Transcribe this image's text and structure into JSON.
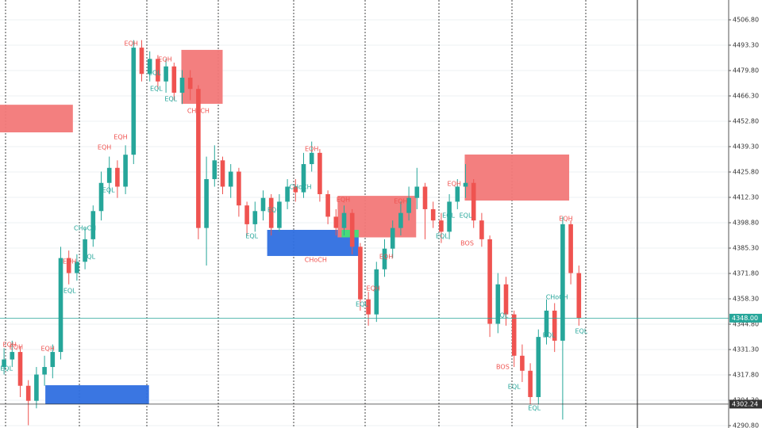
{
  "chart_data": {
    "type": "candlestick",
    "xlim": [
      0,
      90
    ],
    "ylim": [
      4289.53,
      4517.35
    ],
    "yticks": [
      {
        "value": 4506.8,
        "label": "4506.80"
      },
      {
        "value": 4493.3,
        "label": "4493.30"
      },
      {
        "value": 4479.8,
        "label": "4479.80"
      },
      {
        "value": 4466.3,
        "label": "4466.30"
      },
      {
        "value": 4452.8,
        "label": "4452.80"
      },
      {
        "value": 4439.3,
        "label": "4439.30"
      },
      {
        "value": 4425.8,
        "label": "4425.80"
      },
      {
        "value": 4412.3,
        "label": "4412.30"
      },
      {
        "value": 4398.8,
        "label": "4398.80"
      },
      {
        "value": 4385.3,
        "label": "4385.30"
      },
      {
        "value": 4371.8,
        "label": "4371.80"
      },
      {
        "value": 4358.3,
        "label": "4358.30"
      },
      {
        "value": 4344.8,
        "label": "4344.80"
      },
      {
        "value": 4331.3,
        "label": "4331.30"
      },
      {
        "value": 4317.8,
        "label": "4317.80"
      },
      {
        "value": 4304.3,
        "label": "4304.30"
      },
      {
        "value": 4290.8,
        "label": "4290.80"
      }
    ],
    "grid": true,
    "up_color": "#26a69a",
    "down_color": "#ef5350",
    "open": [
      4322,
      4326,
      4330,
      4312,
      4304,
      4318,
      4322,
      4330,
      4380,
      4372,
      4378,
      4390,
      4405,
      4420,
      4428,
      4418,
      4435,
      4492,
      4478,
      4486,
      4474,
      4482,
      4468,
      4476,
      4470,
      4396,
      4422,
      4432,
      4418,
      4426,
      4408,
      4398,
      4405,
      4412,
      4396,
      4410,
      4418,
      4415,
      4430,
      4436,
      4414,
      4402,
      4396,
      4404,
      4386,
      4358,
      4350,
      4374,
      4385,
      4396,
      4404,
      4412,
      4418,
      4406,
      4400,
      4394,
      4410,
      4418,
      4420,
      4400,
      4390,
      4345,
      4366,
      4350,
      4328,
      4320,
      4306,
      4338,
      4352,
      4336,
      4398,
      4372
    ],
    "high": [
      4332,
      4336,
      4333,
      4315,
      4322,
      4328,
      4334,
      4386,
      4384,
      4382,
      4396,
      4408,
      4426,
      4434,
      4432,
      4440,
      4496,
      4496,
      4490,
      4488,
      4486,
      4484,
      4480,
      4480,
      4472,
      4434,
      4440,
      4434,
      4430,
      4428,
      4410,
      4410,
      4416,
      4414,
      4414,
      4422,
      4422,
      4436,
      4442,
      4438,
      4416,
      4406,
      4408,
      4406,
      4388,
      4362,
      4378,
      4390,
      4400,
      4410,
      4418,
      4428,
      4420,
      4410,
      4404,
      4414,
      4422,
      4430,
      4422,
      4404,
      4392,
      4372,
      4370,
      4352,
      4334,
      4324,
      4342,
      4358,
      4356,
      4402,
      4400,
      4376
    ],
    "low": [
      4318,
      4322,
      4306,
      4291,
      4300,
      4312,
      4316,
      4326,
      4366,
      4368,
      4374,
      4386,
      4400,
      4414,
      4412,
      4414,
      4430,
      4474,
      4474,
      4470,
      4468,
      4464,
      4462,
      4464,
      4390,
      4376,
      4418,
      4414,
      4412,
      4402,
      4392,
      4394,
      4400,
      4392,
      4394,
      4406,
      4410,
      4412,
      4426,
      4410,
      4398,
      4392,
      4392,
      4382,
      4352,
      4344,
      4346,
      4370,
      4380,
      4392,
      4400,
      4406,
      4390,
      4396,
      4388,
      4390,
      4406,
      4412,
      4396,
      4386,
      4338,
      4340,
      4344,
      4322,
      4314,
      4302,
      4302,
      4334,
      4330,
      4294,
      4366,
      4344
    ],
    "close": [
      4326,
      4330,
      4312,
      4304,
      4318,
      4322,
      4330,
      4380,
      4372,
      4378,
      4390,
      4405,
      4420,
      4428,
      4418,
      4435,
      4492,
      4478,
      4486,
      4474,
      4482,
      4468,
      4476,
      4470,
      4396,
      4422,
      4432,
      4418,
      4426,
      4408,
      4398,
      4405,
      4412,
      4396,
      4410,
      4418,
      4415,
      4430,
      4436,
      4414,
      4402,
      4396,
      4404,
      4386,
      4358,
      4350,
      4374,
      4385,
      4396,
      4404,
      4412,
      4418,
      4406,
      4400,
      4394,
      4410,
      4418,
      4420,
      4400,
      4390,
      4345,
      4366,
      4350,
      4328,
      4320,
      4306,
      4338,
      4352,
      4336,
      4398,
      4372,
      4348
    ],
    "zones": [
      {
        "x": [
          0,
          9.0
        ],
        "y": [
          4446.9,
          4461.6
        ],
        "color": "#f27878"
      },
      {
        "x": [
          22.4,
          27.5
        ],
        "y": [
          4462.1,
          4490.8
        ],
        "color": "#f27878"
      },
      {
        "x": [
          33.0,
          44.3
        ],
        "y": [
          4381.1,
          4395.0
        ],
        "color": "#2f6fe0"
      },
      {
        "x": [
          41.7,
          51.4
        ],
        "y": [
          4391.0,
          4413.1
        ],
        "color": "#f27878"
      },
      {
        "x": [
          42.2,
          44.3
        ],
        "y": [
          4391.0,
          4395.0
        ],
        "color": "#3ee07a"
      },
      {
        "x": [
          57.4,
          70.3
        ],
        "y": [
          4410.6,
          4435.1
        ],
        "color": "#f27878"
      },
      {
        "x": [
          5.6,
          18.4
        ],
        "y": [
          4302.2,
          4312.3
        ],
        "color": "#2f6fe0"
      }
    ],
    "annotations": [
      {
        "text": "EQH",
        "x": 1.2,
        "y": 4333.8,
        "color": "#ef5350"
      },
      {
        "text": "EQH",
        "x": 2.0,
        "y": 4332.5,
        "color": "#ef5350"
      },
      {
        "text": "EQL",
        "x": 0.8,
        "y": 4321.2,
        "color": "#26a69a"
      },
      {
        "text": "EQH",
        "x": 5.9,
        "y": 4331.7,
        "color": "#ef5350"
      },
      {
        "text": "EQH",
        "x": 8.6,
        "y": 4378.1,
        "color": "#ef5350"
      },
      {
        "text": "CHoCH",
        "x": 10.5,
        "y": 4395.8,
        "color": "#26a69a"
      },
      {
        "text": "EQL",
        "x": 11.0,
        "y": 4380.7,
        "color": "#26a69a"
      },
      {
        "text": "EQL",
        "x": 8.6,
        "y": 4362.5,
        "color": "#26a69a"
      },
      {
        "text": "EQH",
        "x": 12.9,
        "y": 4438.9,
        "color": "#ef5350"
      },
      {
        "text": "EQH",
        "x": 14.9,
        "y": 4444.3,
        "color": "#ef5350"
      },
      {
        "text": "EQL",
        "x": 13.4,
        "y": 4416.1,
        "color": "#26a69a"
      },
      {
        "text": "EQH",
        "x": 16.2,
        "y": 4494.1,
        "color": "#ef5350"
      },
      {
        "text": "EQH",
        "x": 20.4,
        "y": 4485.7,
        "color": "#ef5350"
      },
      {
        "text": "EQL",
        "x": 19.1,
        "y": 4478.5,
        "color": "#26a69a"
      },
      {
        "text": "EQL",
        "x": 19.3,
        "y": 4470.1,
        "color": "#26a69a"
      },
      {
        "text": "EQL",
        "x": 21.1,
        "y": 4464.6,
        "color": "#26a69a"
      },
      {
        "text": "CHoCH",
        "x": 24.5,
        "y": 4458.3,
        "color": "#ef5350"
      },
      {
        "text": "EQL",
        "x": 31.1,
        "y": 4391.6,
        "color": "#26a69a"
      },
      {
        "text": "EQL",
        "x": 33.8,
        "y": 4405.5,
        "color": "#26a69a"
      },
      {
        "text": "CHoCH",
        "x": 37.1,
        "y": 4417.8,
        "color": "#26a69a"
      },
      {
        "text": "EQH",
        "x": 38.5,
        "y": 4438.0,
        "color": "#ef5350"
      },
      {
        "text": "CHoCH",
        "x": 39.0,
        "y": 4379.0,
        "color": "#ef5350"
      },
      {
        "text": "EQH",
        "x": 42.4,
        "y": 4411.0,
        "color": "#ef5350"
      },
      {
        "text": "EQL",
        "x": 44.7,
        "y": 4355.3,
        "color": "#26a69a"
      },
      {
        "text": "EQH",
        "x": 46.1,
        "y": 4363.8,
        "color": "#ef5350"
      },
      {
        "text": "EQH",
        "x": 47.7,
        "y": 4380.7,
        "color": "#ef5350"
      },
      {
        "text": "EQH",
        "x": 49.5,
        "y": 4410.2,
        "color": "#ef5350"
      },
      {
        "text": "EQH",
        "x": 56.1,
        "y": 4419.5,
        "color": "#ef5350"
      },
      {
        "text": "EQL",
        "x": 55.4,
        "y": 4402.6,
        "color": "#26a69a"
      },
      {
        "text": "EQL",
        "x": 57.5,
        "y": 4402.6,
        "color": "#26a69a"
      },
      {
        "text": "EQL",
        "x": 54.6,
        "y": 4391.6,
        "color": "#26a69a"
      },
      {
        "text": "BOS",
        "x": 57.7,
        "y": 4387.8,
        "color": "#ef5350"
      },
      {
        "text": "EQL",
        "x": 62.0,
        "y": 4349.4,
        "color": "#26a69a"
      },
      {
        "text": "BOS",
        "x": 62.1,
        "y": 4322.0,
        "color": "#ef5350"
      },
      {
        "text": "EQL",
        "x": 63.5,
        "y": 4311.5,
        "color": "#26a69a"
      },
      {
        "text": "EQL",
        "x": 66.0,
        "y": 4300.1,
        "color": "#26a69a"
      },
      {
        "text": "CHoCH",
        "x": 68.8,
        "y": 4359.1,
        "color": "#26a69a"
      },
      {
        "text": "EQL",
        "x": 67.8,
        "y": 4338.9,
        "color": "#26a69a"
      },
      {
        "text": "EQH",
        "x": 69.9,
        "y": 4400.9,
        "color": "#ef5350"
      },
      {
        "text": "EQL",
        "x": 71.8,
        "y": 4341.0,
        "color": "#26a69a"
      }
    ],
    "price_lines": [
      {
        "value": 4348,
        "label": "4348.00",
        "color": "#26a69a"
      },
      {
        "value": 4302.24,
        "color": "#333333"
      }
    ]
  }
}
